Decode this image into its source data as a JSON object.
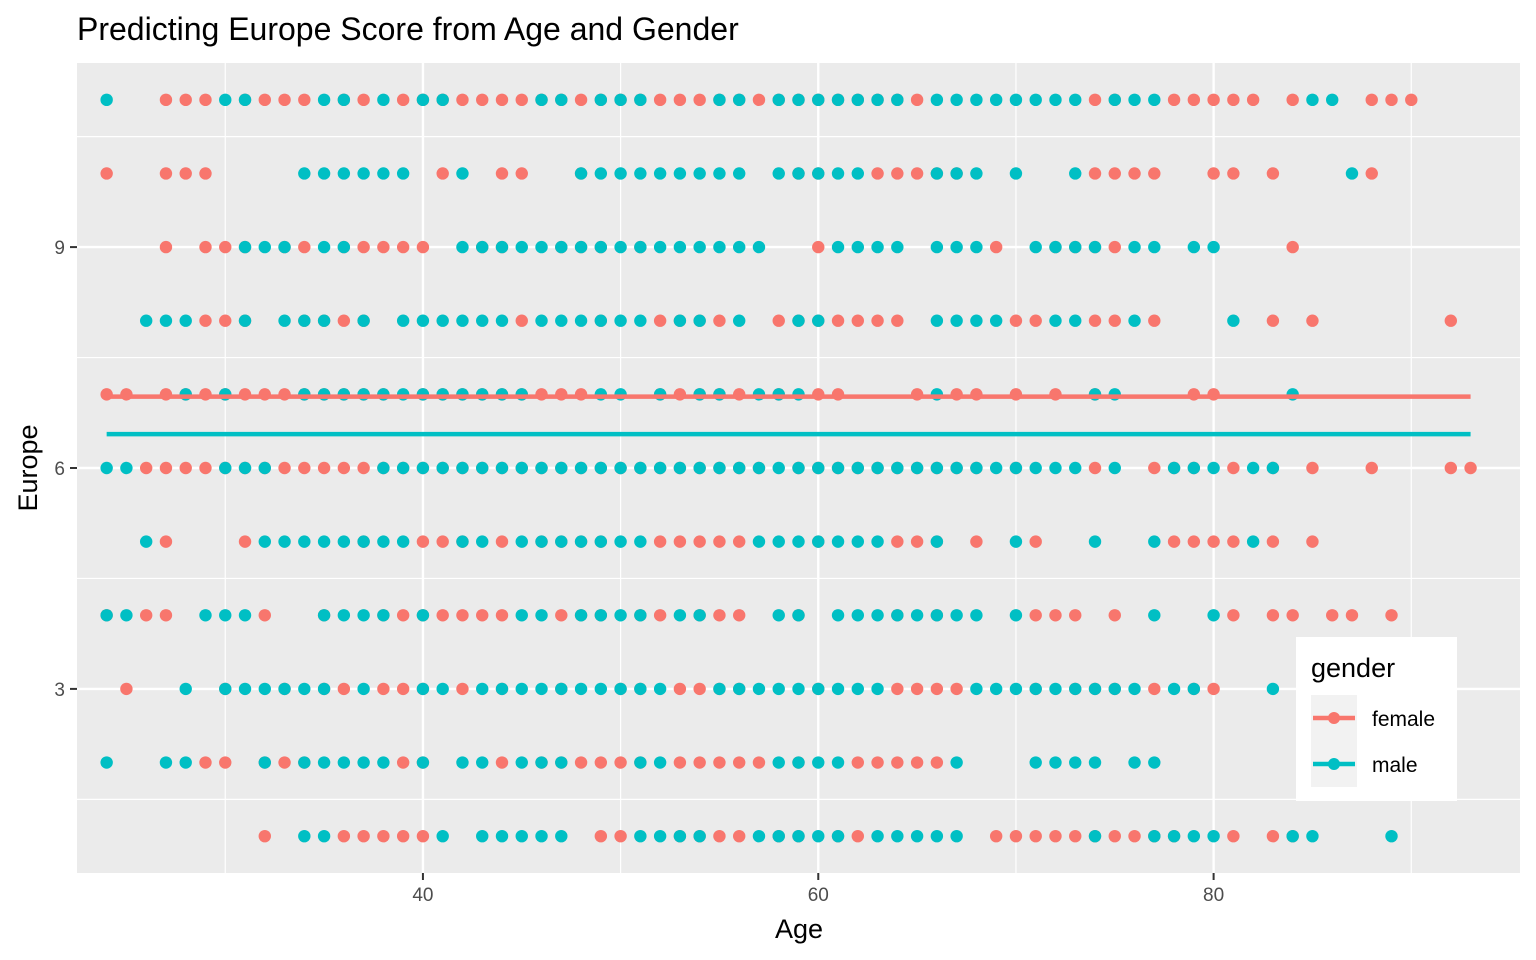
{
  "chart_data": {
    "type": "scatter",
    "title": "Predicting Europe Score from Age and Gender",
    "xlabel": "Age",
    "ylabel": "Europe",
    "xlim": [
      22.5,
      95.5
    ],
    "ylim": [
      0.5,
      11.5
    ],
    "x_ticks": [
      40,
      60,
      80
    ],
    "y_ticks": [
      3,
      6,
      9
    ],
    "grid": true,
    "legend_title": "gender",
    "legend_position": "right, inside bottom",
    "series": [
      {
        "name": "female",
        "color": "#F8766D",
        "fit_line": {
          "x": [
            24,
            93
          ],
          "y": [
            6.97,
            6.97
          ]
        },
        "rows": [
          {
            "y": 11,
            "x": [
              27,
              28,
              29,
              31,
              32,
              33,
              34,
              36,
              37,
              39,
              40,
              41,
              42,
              43,
              44,
              45,
              46,
              47,
              48,
              49,
              50,
              51,
              52,
              53,
              54,
              55,
              56,
              57,
              58,
              59,
              60,
              61,
              62,
              63,
              64,
              65,
              74,
              75,
              78,
              79,
              80,
              81,
              82,
              84,
              88,
              89,
              90
            ]
          },
          {
            "y": 10,
            "x": [
              24,
              27,
              28,
              29,
              41,
              44,
              45,
              48,
              59,
              60,
              63,
              64,
              65,
              66,
              67,
              74,
              75,
              76,
              77,
              80,
              81,
              83,
              88
            ]
          },
          {
            "y": 9,
            "x": [
              27,
              29,
              30,
              31,
              33,
              34,
              36,
              37,
              38,
              39,
              40,
              43,
              44,
              47,
              48,
              49,
              51,
              60,
              69,
              72,
              73,
              74,
              75,
              84
            ]
          },
          {
            "y": 8,
            "x": [
              29,
              30,
              31,
              34,
              35,
              36,
              37,
              45,
              49,
              52,
              53,
              54,
              55,
              58,
              59,
              60,
              61,
              62,
              63,
              64,
              70,
              71,
              74,
              75,
              77,
              83,
              85,
              92
            ]
          },
          {
            "y": 7,
            "x": [
              24,
              25,
              27,
              28,
              29,
              30,
              31,
              32,
              33,
              34,
              35,
              36,
              37,
              38,
              40,
              41,
              42,
              43,
              44,
              45,
              46,
              47,
              48,
              52,
              53,
              54,
              55,
              56,
              58,
              60,
              61,
              65,
              67,
              68,
              70,
              72,
              74,
              79,
              80
            ]
          },
          {
            "y": 6,
            "x": [
              26,
              27,
              28,
              29,
              30,
              31,
              32,
              33,
              34,
              35,
              36,
              37,
              38,
              39,
              40,
              41,
              42,
              43,
              44,
              45,
              46,
              47,
              48,
              49,
              50,
              51,
              52,
              53,
              54,
              55,
              56,
              57,
              59,
              60,
              61,
              62,
              63,
              64,
              65,
              66,
              67,
              68,
              70,
              74,
              77,
              78,
              79,
              81,
              83,
              85,
              88,
              92,
              93
            ]
          },
          {
            "y": 5,
            "x": [
              27,
              31,
              37,
              40,
              41,
              42,
              44,
              46,
              47,
              48,
              49,
              52,
              53,
              54,
              55,
              56,
              60,
              64,
              65,
              66,
              68,
              71,
              78,
              79,
              80,
              81,
              83,
              85
            ]
          },
          {
            "y": 4,
            "x": [
              24,
              26,
              27,
              32,
              35,
              38,
              39,
              40,
              41,
              42,
              43,
              44,
              47,
              48,
              49,
              51,
              52,
              54,
              55,
              56,
              59,
              64,
              66,
              71,
              72,
              73,
              75,
              81,
              83,
              84,
              86,
              87,
              89
            ]
          },
          {
            "y": 3,
            "x": [
              25,
              30,
              33,
              35,
              36,
              38,
              39,
              40,
              42,
              44,
              47,
              50,
              51,
              53,
              54,
              55,
              56,
              60,
              64,
              65,
              66,
              67,
              71,
              73,
              74,
              75,
              77,
              79,
              80
            ]
          },
          {
            "y": 2,
            "x": [
              29,
              30,
              32,
              33,
              34,
              39,
              40,
              44,
              46,
              47,
              48,
              49,
              50,
              51,
              53,
              54,
              55,
              56,
              57,
              59,
              62,
              63,
              64,
              65,
              66
            ]
          },
          {
            "y": 1,
            "x": [
              32,
              36,
              37,
              38,
              39,
              40,
              49,
              50,
              53,
              54,
              55,
              56,
              58,
              59,
              61,
              62,
              69,
              70,
              71,
              72,
              73,
              74,
              75,
              76,
              77,
              78,
              81,
              83,
              84
            ]
          }
        ]
      },
      {
        "name": "male",
        "color": "#00BFC4",
        "fit_line": {
          "x": [
            24,
            93
          ],
          "y": [
            6.46,
            6.46
          ]
        },
        "rows": [
          {
            "y": 11,
            "x": [
              24,
              30,
              31,
              35,
              36,
              38,
              40,
              41,
              46,
              47,
              49,
              50,
              51,
              55,
              56,
              58,
              59,
              60,
              61,
              62,
              63,
              64,
              66,
              67,
              68,
              69,
              70,
              71,
              72,
              73,
              75,
              76,
              77,
              85,
              86
            ]
          },
          {
            "y": 10,
            "x": [
              34,
              35,
              36,
              37,
              38,
              39,
              42,
              48,
              49,
              50,
              51,
              52,
              53,
              54,
              55,
              56,
              58,
              59,
              60,
              61,
              62,
              66,
              67,
              68,
              70,
              73,
              87
            ]
          },
          {
            "y": 9,
            "x": [
              31,
              32,
              33,
              35,
              36,
              42,
              43,
              44,
              45,
              46,
              47,
              48,
              49,
              50,
              51,
              52,
              53,
              54,
              55,
              56,
              57,
              61,
              62,
              63,
              64,
              66,
              67,
              68,
              71,
              72,
              73,
              74,
              76,
              77,
              79,
              80
            ]
          },
          {
            "y": 8,
            "x": [
              26,
              27,
              28,
              31,
              33,
              34,
              35,
              37,
              39,
              40,
              41,
              42,
              43,
              44,
              46,
              47,
              48,
              49,
              50,
              51,
              53,
              54,
              56,
              59,
              60,
              66,
              67,
              68,
              69,
              72,
              73,
              76,
              81
            ]
          },
          {
            "y": 7,
            "x": [
              28,
              30,
              34,
              35,
              36,
              37,
              38,
              39,
              40,
              41,
              42,
              43,
              44,
              45,
              49,
              50,
              52,
              54,
              55,
              57,
              58,
              59,
              66,
              74,
              75,
              84
            ]
          },
          {
            "y": 6,
            "x": [
              24,
              25,
              30,
              31,
              32,
              38,
              39,
              40,
              41,
              42,
              43,
              44,
              45,
              46,
              47,
              48,
              49,
              50,
              51,
              52,
              53,
              54,
              55,
              56,
              57,
              58,
              59,
              60,
              61,
              62,
              63,
              64,
              65,
              66,
              67,
              68,
              69,
              70,
              71,
              72,
              73,
              75,
              78,
              79,
              80,
              82,
              83
            ]
          },
          {
            "y": 5,
            "x": [
              26,
              32,
              33,
              34,
              35,
              36,
              37,
              38,
              39,
              42,
              43,
              45,
              46,
              47,
              48,
              49,
              50,
              51,
              57,
              58,
              59,
              60,
              61,
              62,
              63,
              66,
              70,
              74,
              77,
              82
            ]
          },
          {
            "y": 4,
            "x": [
              24,
              25,
              29,
              30,
              31,
              35,
              36,
              37,
              38,
              40,
              45,
              46,
              48,
              49,
              50,
              51,
              53,
              54,
              58,
              59,
              61,
              62,
              63,
              64,
              65,
              66,
              67,
              68,
              70,
              77,
              80
            ]
          },
          {
            "y": 3,
            "x": [
              28,
              30,
              31,
              32,
              33,
              34,
              35,
              37,
              40,
              41,
              43,
              44,
              45,
              46,
              47,
              48,
              49,
              50,
              51,
              52,
              55,
              56,
              57,
              58,
              59,
              60,
              61,
              62,
              63,
              68,
              69,
              70,
              71,
              72,
              73,
              74,
              75,
              76,
              78,
              79,
              83
            ]
          },
          {
            "y": 2,
            "x": [
              24,
              27,
              28,
              32,
              34,
              35,
              36,
              37,
              38,
              40,
              42,
              43,
              45,
              46,
              47,
              51,
              52,
              58,
              59,
              60,
              61,
              67,
              71,
              72,
              73,
              74,
              76,
              77
            ]
          },
          {
            "y": 1,
            "x": [
              34,
              35,
              41,
              43,
              44,
              45,
              46,
              47,
              51,
              52,
              53,
              54,
              57,
              58,
              59,
              60,
              61,
              63,
              64,
              65,
              66,
              67,
              74,
              77,
              78,
              79,
              80,
              84,
              85,
              89
            ]
          }
        ]
      }
    ]
  }
}
